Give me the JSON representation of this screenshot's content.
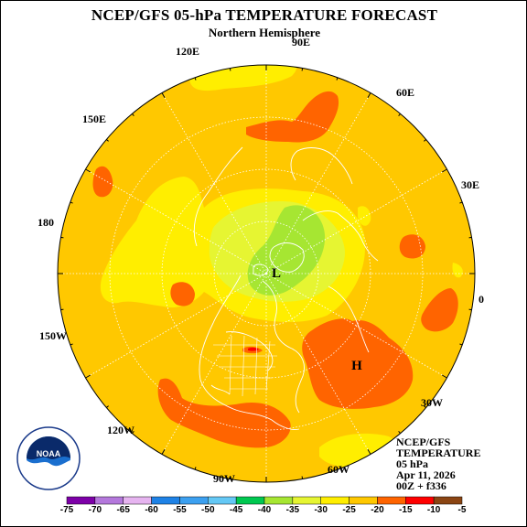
{
  "title": "NCEP/GFS 05-hPa TEMPERATURE FORECAST",
  "subtitle": "Northern Hemisphere",
  "longitude_labels": [
    "90E",
    "120E",
    "60E",
    "150E",
    "30E",
    "180",
    "0",
    "150W",
    "30W",
    "120W",
    "90W",
    "60W"
  ],
  "pressure_markers": [
    {
      "label": "L",
      "meaning": "low"
    },
    {
      "label": "H",
      "meaning": "high"
    }
  ],
  "info_block": {
    "model": "NCEP/GFS",
    "field": "TEMPERATURE",
    "level": "05 hPa",
    "date": "Apr 11, 2026",
    "run": "00Z + f336"
  },
  "logo": {
    "text": "NOAA",
    "ring_text": "NATIONAL OCEANIC AND ATMOSPHERIC ADMINISTRATION · U.S. DEPARTMENT OF COMMERCE"
  },
  "colorbar": {
    "ticks": [
      "-75",
      "-70",
      "-65",
      "-60",
      "-55",
      "-50",
      "-45",
      "-40",
      "-35",
      "-30",
      "-25",
      "-20",
      "-15",
      "-10",
      "-5"
    ],
    "bins": [
      {
        "from": -75,
        "to": -70,
        "color": "#7d00a8"
      },
      {
        "from": -70,
        "to": -65,
        "color": "#b478dc"
      },
      {
        "from": -65,
        "to": -60,
        "color": "#e6b4f0"
      },
      {
        "from": -60,
        "to": -55,
        "color": "#1e82e6"
      },
      {
        "from": -55,
        "to": -50,
        "color": "#3ca0f0"
      },
      {
        "from": -50,
        "to": -45,
        "color": "#64c8f5"
      },
      {
        "from": -45,
        "to": -40,
        "color": "#00c850"
      },
      {
        "from": -40,
        "to": -35,
        "color": "#a6e632"
      },
      {
        "from": -35,
        "to": -30,
        "color": "#e6f532"
      },
      {
        "from": -30,
        "to": -25,
        "color": "#ffee00"
      },
      {
        "from": -25,
        "to": -20,
        "color": "#ffc800"
      },
      {
        "from": -20,
        "to": -15,
        "color": "#ff6400"
      },
      {
        "from": -15,
        "to": -10,
        "color": "#ff0000"
      },
      {
        "from": -10,
        "to": -5,
        "color": "#8b4513"
      }
    ]
  },
  "background_band_color": "#ffc800"
}
